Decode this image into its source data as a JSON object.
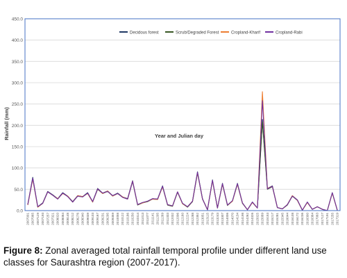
{
  "caption": {
    "label": "Figure 8:",
    "text": "Zonal averaged total rainfall temporal profile under different land use classes for Saurashtra region (2007-2017)."
  },
  "colors": {
    "plot_border": "#4472c4",
    "grid": "#d9d9d9",
    "axis_text": "#595959"
  },
  "chart_data": {
    "type": "line",
    "xlabel": "Year and Julian day",
    "ylabel": "Rainfall (mm)",
    "ylim": [
      0,
      450
    ],
    "yticks": [
      "0.0",
      "50.0",
      "100.0",
      "150.0",
      "200.0",
      "250.0",
      "300.0",
      "350.0",
      "400.0",
      "450.0"
    ],
    "grid": "horizontal",
    "legend_position": "top-right",
    "categories": [
      "2007001",
      "2007065",
      "2007129",
      "2007193",
      "2007257",
      "2007321",
      "2008020",
      "2008084",
      "2008148",
      "2008212",
      "2008276",
      "2008340",
      "2009039",
      "2009103",
      "2009167",
      "2009231",
      "2009295",
      "2009359",
      "2010058",
      "2010122",
      "2010186",
      "2010250",
      "2010314",
      "2011013",
      "2011077",
      "2011141",
      "2011205",
      "2011269",
      "2011333",
      "2012032",
      "2012096",
      "2012160",
      "2012224",
      "2012288",
      "2012352",
      "2013051",
      "2013115",
      "2013179",
      "2013243",
      "2013307",
      "2014006",
      "2014070",
      "2014134",
      "2014198",
      "2014262",
      "2014326",
      "2015025",
      "2015089",
      "2015153",
      "2015217",
      "2015281",
      "2015345",
      "2016044",
      "2016108",
      "2016172",
      "2016236",
      "2016300",
      "2016364",
      "2017063",
      "2017127",
      "2017191",
      "2017255",
      "2017319"
    ],
    "series": [
      {
        "name": "Decidous forest",
        "color": "#1f3864",
        "values": [
          14,
          78,
          9,
          18,
          45,
          37,
          28,
          42,
          34,
          21,
          35,
          33,
          42,
          21,
          52,
          41,
          46,
          35,
          41,
          32,
          28,
          70,
          14,
          19,
          22,
          28,
          27,
          58,
          14,
          11,
          44,
          17,
          9,
          22,
          91,
          28,
          2,
          72,
          6,
          64,
          13,
          23,
          64,
          18,
          2,
          20,
          6,
          214,
          52,
          58,
          7,
          4,
          14,
          35,
          25,
          1,
          20,
          3,
          9,
          3,
          0,
          42,
          1
        ]
      },
      {
        "name": "Scrub/Degraded Forest",
        "color": "#375623",
        "values": [
          13,
          75,
          8,
          17,
          44,
          36,
          27,
          41,
          33,
          20,
          34,
          32,
          41,
          20,
          50,
          40,
          45,
          34,
          40,
          31,
          27,
          68,
          13,
          18,
          21,
          27,
          26,
          56,
          13,
          10,
          43,
          16,
          8,
          21,
          88,
          27,
          2,
          70,
          6,
          62,
          12,
          22,
          62,
          17,
          2,
          19,
          6,
          208,
          50,
          56,
          7,
          4,
          13,
          34,
          24,
          1,
          19,
          3,
          9,
          3,
          0,
          41,
          1
        ]
      },
      {
        "name": "Cropland-Kharif",
        "color": "#ed7d31",
        "values": [
          13,
          74,
          8,
          17,
          44,
          36,
          28,
          40,
          34,
          20,
          35,
          33,
          40,
          20,
          51,
          40,
          46,
          34,
          40,
          32,
          27,
          69,
          14,
          18,
          22,
          27,
          26,
          56,
          14,
          11,
          44,
          16,
          9,
          22,
          89,
          27,
          2,
          70,
          6,
          62,
          13,
          22,
          62,
          18,
          2,
          19,
          6,
          279,
          52,
          57,
          7,
          4,
          14,
          35,
          24,
          1,
          19,
          3,
          9,
          3,
          0,
          41,
          1
        ]
      },
      {
        "name": "Cropland-Rabi",
        "color": "#7030a0",
        "values": [
          14,
          76,
          9,
          17,
          44,
          36,
          27,
          41,
          33,
          20,
          34,
          32,
          41,
          21,
          51,
          41,
          45,
          35,
          40,
          31,
          27,
          69,
          14,
          19,
          22,
          28,
          27,
          57,
          14,
          11,
          44,
          17,
          9,
          22,
          90,
          27,
          2,
          71,
          6,
          63,
          13,
          23,
          63,
          18,
          2,
          20,
          6,
          258,
          51,
          57,
          7,
          4,
          14,
          34,
          25,
          1,
          20,
          3,
          9,
          3,
          0,
          42,
          1
        ]
      }
    ]
  }
}
